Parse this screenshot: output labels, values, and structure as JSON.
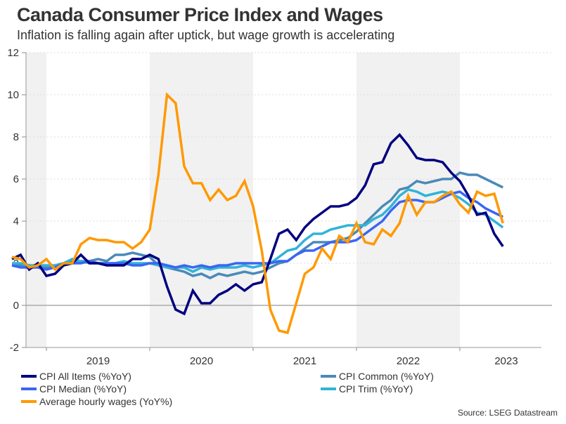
{
  "header": {
    "title": "Canada Consumer Price Index and Wages",
    "subtitle": "Inflation is falling again after uptick, but wage growth is accelerating"
  },
  "source": "Source: LSEG Datastream",
  "chart_data": {
    "type": "line",
    "title": "Canada Consumer Price Index and Wages",
    "subtitle": "Inflation is falling again after uptick, but wage growth is accelerating",
    "xlabel": "",
    "ylabel": "",
    "ylim": [
      -2,
      12
    ],
    "yticks": [
      -2,
      0,
      2,
      4,
      6,
      8,
      10,
      12
    ],
    "xticks": [
      "2019",
      "2020",
      "2021",
      "2022",
      "2023"
    ],
    "x_start": "2018-09",
    "x_end": "2023-06",
    "shaded_years": [
      "2018",
      "2020",
      "2022"
    ],
    "grid": "horizontal dotted",
    "legend_position": "bottom",
    "x": [
      "2018-09",
      "2018-10",
      "2018-11",
      "2018-12",
      "2019-01",
      "2019-02",
      "2019-03",
      "2019-04",
      "2019-05",
      "2019-06",
      "2019-07",
      "2019-08",
      "2019-09",
      "2019-10",
      "2019-11",
      "2019-12",
      "2020-01",
      "2020-02",
      "2020-03",
      "2020-04",
      "2020-05",
      "2020-06",
      "2020-07",
      "2020-08",
      "2020-09",
      "2020-10",
      "2020-11",
      "2020-12",
      "2021-01",
      "2021-02",
      "2021-03",
      "2021-04",
      "2021-05",
      "2021-06",
      "2021-07",
      "2021-08",
      "2021-09",
      "2021-10",
      "2021-11",
      "2021-12",
      "2022-01",
      "2022-02",
      "2022-03",
      "2022-04",
      "2022-05",
      "2022-06",
      "2022-07",
      "2022-08",
      "2022-09",
      "2022-10",
      "2022-11",
      "2022-12",
      "2023-01",
      "2023-02",
      "2023-03",
      "2023-04",
      "2023-05",
      "2023-06"
    ],
    "series": [
      {
        "name": "CPI All Items (%YoY)",
        "color": "#000080",
        "values": [
          2.2,
          2.4,
          1.7,
          2.0,
          1.4,
          1.5,
          1.9,
          2.0,
          2.4,
          2.0,
          2.0,
          1.9,
          1.9,
          1.9,
          2.2,
          2.2,
          2.4,
          2.2,
          0.9,
          -0.2,
          -0.4,
          0.7,
          0.1,
          0.1,
          0.5,
          0.7,
          1.0,
          0.7,
          1.0,
          1.1,
          2.2,
          3.4,
          3.6,
          3.1,
          3.7,
          4.1,
          4.4,
          4.7,
          4.7,
          4.8,
          5.1,
          5.7,
          6.7,
          6.8,
          7.7,
          8.1,
          7.6,
          7.0,
          6.9,
          6.9,
          6.8,
          6.3,
          5.9,
          5.2,
          4.3,
          4.4,
          3.4,
          2.8
        ]
      },
      {
        "name": "CPI Common (%YoY)",
        "color": "#4a8ab8",
        "values": [
          1.9,
          1.9,
          1.9,
          1.8,
          1.8,
          1.8,
          2.0,
          2.1,
          2.1,
          2.1,
          2.2,
          2.1,
          2.4,
          2.4,
          2.5,
          2.4,
          2.3,
          1.9,
          1.8,
          1.7,
          1.6,
          1.4,
          1.5,
          1.3,
          1.5,
          1.4,
          1.5,
          1.6,
          1.5,
          1.6,
          1.8,
          2.0,
          2.1,
          2.4,
          2.7,
          3.0,
          3.0,
          3.0,
          3.1,
          3.2,
          3.5,
          3.9,
          4.3,
          4.7,
          5.0,
          5.5,
          5.6,
          5.9,
          5.8,
          5.9,
          6.0,
          6.0,
          6.3,
          6.2,
          6.2,
          6.0,
          5.8,
          5.6
        ]
      },
      {
        "name": "CPI Median (%YoY)",
        "color": "#3a66f2",
        "values": [
          1.9,
          1.8,
          1.8,
          1.8,
          1.7,
          1.8,
          2.0,
          2.0,
          2.0,
          2.1,
          2.0,
          2.0,
          2.0,
          2.0,
          1.9,
          1.9,
          2.0,
          2.0,
          1.9,
          1.8,
          1.9,
          1.8,
          1.9,
          1.8,
          1.9,
          1.9,
          2.0,
          2.0,
          2.0,
          2.0,
          2.0,
          2.1,
          2.1,
          2.4,
          2.6,
          2.6,
          2.8,
          3.0,
          3.0,
          3.0,
          3.1,
          3.4,
          3.7,
          4.0,
          4.5,
          4.9,
          5.0,
          5.0,
          4.9,
          4.9,
          5.1,
          5.3,
          5.4,
          5.1,
          4.9,
          4.6,
          4.4,
          4.2
        ]
      },
      {
        "name": "CPI Trim (%YoY)",
        "color": "#30b4d8",
        "values": [
          2.0,
          2.0,
          1.9,
          1.9,
          1.9,
          1.9,
          2.0,
          2.2,
          2.1,
          2.0,
          2.0,
          2.0,
          2.0,
          2.1,
          2.0,
          2.0,
          2.0,
          1.9,
          1.8,
          1.8,
          1.8,
          1.6,
          1.8,
          1.7,
          1.8,
          1.8,
          1.8,
          1.9,
          1.8,
          1.9,
          2.0,
          2.3,
          2.6,
          2.7,
          3.1,
          3.4,
          3.4,
          3.6,
          3.7,
          3.8,
          3.8,
          3.8,
          4.1,
          4.3,
          4.7,
          5.2,
          5.5,
          5.4,
          5.2,
          5.3,
          5.4,
          5.3,
          5.1,
          4.8,
          4.4,
          4.3,
          4.0,
          3.7
        ]
      },
      {
        "name": "Average hourly wages (YoY%)",
        "color": "#ff9900",
        "values": [
          2.3,
          2.2,
          1.8,
          1.9,
          2.2,
          1.7,
          2.0,
          2.0,
          2.9,
          3.2,
          3.1,
          3.1,
          3.0,
          3.0,
          2.7,
          3.0,
          3.6,
          6.2,
          10.0,
          9.6,
          6.6,
          5.8,
          5.8,
          5.0,
          5.5,
          5.0,
          5.2,
          5.9,
          4.7,
          2.6,
          -0.2,
          -1.2,
          -1.3,
          0.1,
          1.5,
          1.8,
          2.7,
          2.2,
          3.3,
          3.0,
          3.9,
          3.0,
          2.9,
          3.6,
          3.3,
          3.9,
          5.2,
          4.3,
          4.9,
          4.9,
          5.2,
          5.4,
          4.8,
          4.4,
          5.4,
          5.2,
          5.3,
          3.9
        ]
      }
    ]
  },
  "legend": [
    {
      "label": "CPI All Items (%YoY)",
      "color": "#000080"
    },
    {
      "label": "CPI Common (%YoY)",
      "color": "#4a8ab8"
    },
    {
      "label": "CPI Median (%YoY)",
      "color": "#3a66f2"
    },
    {
      "label": "CPI Trim (%YoY)",
      "color": "#30b4d8"
    },
    {
      "label": "Average hourly wages (YoY%)",
      "color": "#ff9900"
    }
  ]
}
